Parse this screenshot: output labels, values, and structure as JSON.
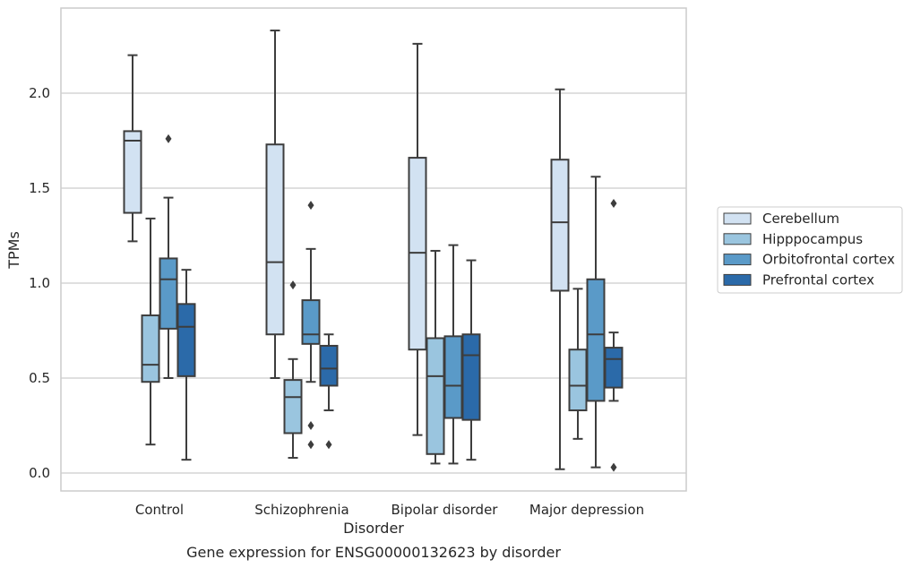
{
  "chart_data": {
    "type": "box",
    "caption": "Gene expression for ENSG00000132623 by disorder",
    "xlabel": "Disorder",
    "ylabel": "TPMs",
    "ylim": [
      -0.09,
      2.45
    ],
    "yticks": [
      0.0,
      0.5,
      1.0,
      1.5,
      2.0
    ],
    "ytick_labels": [
      "0.0",
      "0.5",
      "1.0",
      "1.5",
      "2.0"
    ],
    "grid": "horizontal",
    "legend_position": "right",
    "categories": [
      "Control",
      "Schizophrenia",
      "Bipolar disorder",
      "Major depression"
    ],
    "series": [
      {
        "name": "Cerebellum",
        "color": "#d2e2f2",
        "boxes": [
          {
            "whislo": 1.22,
            "q1": 1.37,
            "med": 1.75,
            "q3": 1.8,
            "whishi": 2.2,
            "fliers": []
          },
          {
            "whislo": 0.5,
            "q1": 0.73,
            "med": 1.11,
            "q3": 1.73,
            "whishi": 2.33,
            "fliers": []
          },
          {
            "whislo": 0.2,
            "q1": 0.65,
            "med": 1.16,
            "q3": 1.66,
            "whishi": 2.26,
            "fliers": []
          },
          {
            "whislo": 0.02,
            "q1": 0.96,
            "med": 1.32,
            "q3": 1.65,
            "whishi": 2.02,
            "fliers": []
          }
        ]
      },
      {
        "name": "Hipppocampus",
        "color": "#9ac5df",
        "boxes": [
          {
            "whislo": 0.15,
            "q1": 0.48,
            "med": 0.57,
            "q3": 0.83,
            "whishi": 1.34,
            "fliers": []
          },
          {
            "whislo": 0.08,
            "q1": 0.21,
            "med": 0.4,
            "q3": 0.49,
            "whishi": 0.6,
            "fliers": [
              0.99
            ]
          },
          {
            "whislo": 0.05,
            "q1": 0.1,
            "med": 0.51,
            "q3": 0.71,
            "whishi": 1.17,
            "fliers": []
          },
          {
            "whislo": 0.18,
            "q1": 0.33,
            "med": 0.46,
            "q3": 0.65,
            "whishi": 0.97,
            "fliers": []
          }
        ]
      },
      {
        "name": "Orbitofrontal cortex",
        "color": "#5a9ac8",
        "boxes": [
          {
            "whislo": 0.5,
            "q1": 0.76,
            "med": 1.02,
            "q3": 1.13,
            "whishi": 1.45,
            "fliers": [
              1.76
            ]
          },
          {
            "whislo": 0.48,
            "q1": 0.68,
            "med": 0.73,
            "q3": 0.91,
            "whishi": 1.18,
            "fliers": [
              1.41,
              0.25,
              0.15
            ]
          },
          {
            "whislo": 0.05,
            "q1": 0.29,
            "med": 0.46,
            "q3": 0.72,
            "whishi": 1.2,
            "fliers": []
          },
          {
            "whislo": 0.03,
            "q1": 0.38,
            "med": 0.73,
            "q3": 1.02,
            "whishi": 1.56,
            "fliers": []
          }
        ]
      },
      {
        "name": "Prefrontal cortex",
        "color": "#2b6aa9",
        "boxes": [
          {
            "whislo": 0.07,
            "q1": 0.51,
            "med": 0.77,
            "q3": 0.89,
            "whishi": 1.07,
            "fliers": []
          },
          {
            "whislo": 0.33,
            "q1": 0.46,
            "med": 0.55,
            "q3": 0.67,
            "whishi": 0.73,
            "fliers": [
              0.15
            ]
          },
          {
            "whislo": 0.07,
            "q1": 0.28,
            "med": 0.62,
            "q3": 0.73,
            "whishi": 1.12,
            "fliers": []
          },
          {
            "whislo": 0.38,
            "q1": 0.45,
            "med": 0.6,
            "q3": 0.66,
            "whishi": 0.74,
            "fliers": [
              1.42,
              0.03
            ]
          }
        ]
      }
    ]
  }
}
